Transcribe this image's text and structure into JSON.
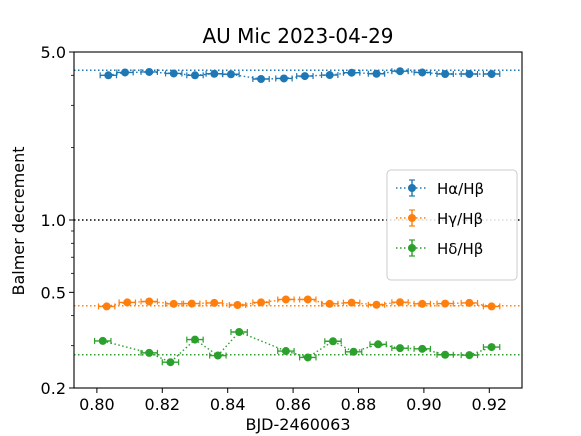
{
  "chart_data": {
    "type": "scatter",
    "title": "AU Mic 2023-04-29",
    "xlabel": "BJD-2460063",
    "ylabel": "Balmer decrement",
    "xlim": [
      0.793,
      0.93
    ],
    "ylim": [
      0.2,
      5.0
    ],
    "yscale": "log",
    "x_ticks": [
      0.8,
      0.82,
      0.84,
      0.86,
      0.88,
      0.9,
      0.92
    ],
    "x_tick_labels": [
      "0.80",
      "0.82",
      "0.84",
      "0.86",
      "0.88",
      "0.90",
      "0.92"
    ],
    "y_ticks": [
      0.2,
      0.5,
      1.0,
      5.0
    ],
    "y_tick_labels": [
      "0.2",
      "0.5",
      "1.0",
      "5.0"
    ],
    "y_minor_ticks": [
      0.3,
      0.4,
      0.6,
      0.7,
      0.8,
      0.9,
      2,
      3,
      4
    ],
    "grid": false,
    "legend_position": "center-right",
    "reference_lines": [
      {
        "y": 4.2,
        "color": "#1f77b4",
        "style": "dotted"
      },
      {
        "y": 1.0,
        "color": "#000000",
        "style": "dotted"
      },
      {
        "y": 0.44,
        "color": "#ff7f0e",
        "style": "dotted"
      },
      {
        "y": 0.275,
        "color": "#2ca02c",
        "style": "dotted"
      }
    ],
    "series": [
      {
        "name": "Hα/Hβ",
        "color": "#1f77b4",
        "x_err": 0.0025,
        "points": [
          {
            "x": 0.8035,
            "y": 4.0
          },
          {
            "x": 0.8086,
            "y": 4.11
          },
          {
            "x": 0.816,
            "y": 4.13
          },
          {
            "x": 0.8235,
            "y": 4.07
          },
          {
            "x": 0.83,
            "y": 4.0
          },
          {
            "x": 0.8359,
            "y": 4.06
          },
          {
            "x": 0.841,
            "y": 4.04
          },
          {
            "x": 0.8502,
            "y": 3.86
          },
          {
            "x": 0.8572,
            "y": 3.88
          },
          {
            "x": 0.8636,
            "y": 3.97
          },
          {
            "x": 0.8712,
            "y": 4.01
          },
          {
            "x": 0.8779,
            "y": 4.1
          },
          {
            "x": 0.8855,
            "y": 4.06
          },
          {
            "x": 0.8927,
            "y": 4.16
          },
          {
            "x": 0.8995,
            "y": 4.11
          },
          {
            "x": 0.9065,
            "y": 4.05
          },
          {
            "x": 0.9139,
            "y": 4.05
          },
          {
            "x": 0.9207,
            "y": 4.05
          }
        ]
      },
      {
        "name": "Hγ/Hβ",
        "color": "#ff7f0e",
        "x_err": 0.0025,
        "points": [
          {
            "x": 0.803,
            "y": 0.437
          },
          {
            "x": 0.8093,
            "y": 0.454
          },
          {
            "x": 0.816,
            "y": 0.458
          },
          {
            "x": 0.8235,
            "y": 0.448
          },
          {
            "x": 0.829,
            "y": 0.449
          },
          {
            "x": 0.8359,
            "y": 0.452
          },
          {
            "x": 0.843,
            "y": 0.443
          },
          {
            "x": 0.8502,
            "y": 0.454
          },
          {
            "x": 0.8578,
            "y": 0.467
          },
          {
            "x": 0.8645,
            "y": 0.467
          },
          {
            "x": 0.8712,
            "y": 0.448
          },
          {
            "x": 0.8779,
            "y": 0.453
          },
          {
            "x": 0.8855,
            "y": 0.444
          },
          {
            "x": 0.8927,
            "y": 0.455
          },
          {
            "x": 0.8995,
            "y": 0.448
          },
          {
            "x": 0.9065,
            "y": 0.449
          },
          {
            "x": 0.9139,
            "y": 0.452
          },
          {
            "x": 0.9207,
            "y": 0.437
          }
        ]
      },
      {
        "name": "Hδ/Hβ",
        "color": "#2ca02c",
        "x_err": 0.0025,
        "points": [
          {
            "x": 0.8018,
            "y": 0.314
          },
          {
            "x": 0.816,
            "y": 0.28
          },
          {
            "x": 0.8225,
            "y": 0.256
          },
          {
            "x": 0.83,
            "y": 0.318
          },
          {
            "x": 0.837,
            "y": 0.273
          },
          {
            "x": 0.8435,
            "y": 0.342
          },
          {
            "x": 0.8578,
            "y": 0.285
          },
          {
            "x": 0.8645,
            "y": 0.268
          },
          {
            "x": 0.8722,
            "y": 0.313
          },
          {
            "x": 0.8785,
            "y": 0.283
          },
          {
            "x": 0.886,
            "y": 0.304
          },
          {
            "x": 0.8927,
            "y": 0.293
          },
          {
            "x": 0.8995,
            "y": 0.291
          },
          {
            "x": 0.9065,
            "y": 0.275
          },
          {
            "x": 0.9139,
            "y": 0.274
          },
          {
            "x": 0.9207,
            "y": 0.296
          }
        ]
      }
    ]
  }
}
